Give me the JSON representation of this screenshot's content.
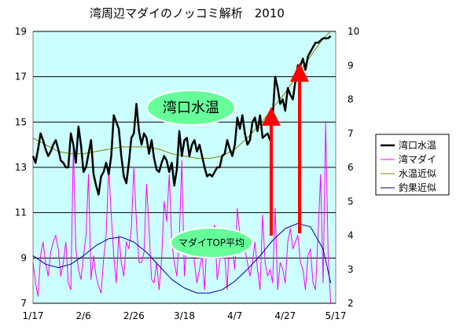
{
  "chart_data": {
    "type": "line",
    "title": "湾周辺マダイのノッコミ解析　2010",
    "x_ticks": [
      "1/17",
      "2/6",
      "2/26",
      "3/18",
      "4/7",
      "4/27",
      "5/17"
    ],
    "y_left": {
      "min": 7,
      "max": 19,
      "ticks": [
        "7",
        "9",
        "11",
        "13",
        "15",
        "17",
        "19"
      ]
    },
    "y_right": {
      "min": 2,
      "max": 10,
      "ticks": [
        "2",
        "3",
        "4",
        "5",
        "6",
        "7",
        "8",
        "9",
        "10"
      ]
    },
    "legend_position": "right",
    "grid": "horizontal",
    "annotations": {
      "water_temp": "湾口水温",
      "madai_top": "マダイTOP平均"
    },
    "colors": {
      "plot_bg": "#ccffff",
      "water_temp": "#000000",
      "madai": "#ff00ff",
      "temp_fit": "#808000",
      "catch_fit": "#0000a0",
      "arrow": "#ff0000",
      "bubble": "#66ff99"
    },
    "series": [
      {
        "name": "湾口水温",
        "axis": "left",
        "x": [
          0,
          1,
          2,
          3,
          4,
          5,
          6,
          7,
          8,
          9,
          10,
          11,
          12,
          13,
          14,
          15,
          16,
          17,
          18,
          19,
          20,
          21,
          22,
          23,
          24,
          25,
          26,
          27,
          28,
          29,
          30,
          31,
          32,
          33,
          34,
          35,
          36,
          37,
          38,
          39,
          40,
          41,
          42,
          43,
          44,
          45,
          46,
          47,
          48,
          49,
          50,
          51,
          52,
          53,
          54,
          55,
          56,
          57,
          58,
          59,
          60,
          61,
          62,
          63,
          64,
          65,
          66,
          67,
          68,
          69,
          70,
          71,
          72,
          73,
          74,
          75,
          76,
          77,
          78,
          79,
          80,
          81,
          82,
          83,
          84,
          85,
          86,
          87,
          88,
          89,
          90,
          91,
          92,
          93,
          94,
          95,
          96,
          97,
          98,
          99,
          100,
          101,
          102,
          103,
          104,
          105,
          106,
          107,
          108,
          109,
          110,
          111,
          112,
          113,
          114,
          115,
          116,
          117,
          118
        ],
        "values": [
          13.5,
          13.2,
          13.8,
          14.5,
          14.2,
          13.8,
          13.5,
          13.7,
          14.0,
          14.2,
          13.8,
          13.3,
          13.2,
          13.0,
          13.0,
          14.5,
          14.0,
          13.2,
          14.8,
          14.0,
          12.8,
          13.0,
          13.6,
          14.2,
          12.7,
          12.2,
          11.8,
          12.6,
          12.8,
          13.2,
          12.7,
          13.5,
          15.3,
          15.0,
          14.7,
          13.5,
          12.6,
          12.3,
          13.2,
          14.3,
          14.5,
          15.8,
          14.6,
          14.0,
          14.5,
          14.3,
          13.6,
          14.2,
          13.4,
          12.9,
          12.8,
          13.2,
          13.5,
          13.3,
          12.8,
          13.2,
          12.2,
          12.9,
          14.6,
          13.5,
          14.2,
          14.3,
          13.5,
          14.0,
          14.2,
          13.7,
          14.0,
          13.5,
          13.0,
          12.6,
          12.7,
          12.6,
          12.8,
          13.0,
          13.0,
          13.5,
          13.6,
          14.2,
          13.8,
          13.5,
          14.0,
          15.2,
          14.7,
          15.3,
          14.5,
          14.0,
          14.2,
          15.0,
          15.2,
          14.6,
          15.3,
          14.3,
          14.4,
          14.5,
          14.2,
          15.2,
          17.0,
          16.5,
          15.8,
          16.0,
          15.5,
          16.5,
          16.2,
          16.0,
          16.8,
          17.5,
          17.5,
          17.8,
          17.3,
          17.9,
          18.1,
          18.3,
          18.5,
          18.5,
          18.6,
          18.7,
          18.7,
          18.7,
          18.8
        ]
      },
      {
        "name": "湾マダイ",
        "axis": "right",
        "x": [
          0,
          1,
          2,
          3,
          4,
          5,
          6,
          7,
          8,
          9,
          10,
          11,
          12,
          13,
          14,
          15,
          16,
          17,
          18,
          19,
          20,
          21,
          22,
          23,
          24,
          25,
          26,
          27,
          28,
          29,
          30,
          31,
          32,
          33,
          34,
          35,
          36,
          37,
          38,
          39,
          40,
          41,
          42,
          43,
          44,
          45,
          46,
          47,
          48,
          49,
          50,
          51,
          52,
          53,
          54,
          55,
          56,
          57,
          58,
          59,
          60,
          61,
          62,
          63,
          64,
          65,
          66,
          67,
          68,
          69,
          70,
          71,
          72,
          73,
          74,
          75,
          76,
          77,
          78,
          79,
          80,
          81,
          82,
          83,
          84,
          85,
          86,
          87,
          88,
          89,
          90,
          91,
          92,
          93,
          94,
          95,
          96,
          97,
          98,
          99,
          100,
          101,
          102,
          103,
          104,
          105,
          106,
          107,
          108,
          109,
          110,
          111,
          112,
          113,
          114,
          115,
          116,
          117,
          118
        ],
        "values": [
          3.2,
          2.6,
          2.2,
          3.4,
          3.8,
          3.2,
          2.8,
          3.5,
          3.8,
          4.0,
          3.6,
          2.8,
          3.2,
          3.8,
          2.6,
          2.4,
          6.6,
          3.6,
          3.0,
          2.7,
          3.4,
          4.0,
          5.8,
          2.7,
          3.4,
          2.8,
          2.5,
          2.3,
          3.3,
          4.0,
          6.0,
          4.6,
          3.4,
          2.6,
          4.0,
          3.2,
          2.8,
          3.8,
          3.6,
          4.2,
          6.0,
          4.4,
          3.2,
          3.2,
          3.5,
          5.5,
          4.2,
          2.7,
          2.6,
          3.2,
          2.4,
          3.3,
          5.0,
          4.4,
          5.8,
          3.8,
          3.2,
          2.8,
          4.0,
          6.2,
          2.8,
          3.8,
          3.4,
          4.2,
          3.2,
          2.6,
          3.0,
          3.4,
          2.4,
          4.0,
          3.8,
          4.1,
          4.3,
          2.7,
          3.2,
          3.8,
          3.4,
          2.4,
          4.2,
          3.6,
          3.0,
          4.8,
          4.0,
          3.5,
          3.6,
          3.2,
          2.8,
          3.2,
          3.8,
          3.0,
          2.4,
          4.6,
          3.2,
          2.8,
          3.0,
          2.6,
          4.8,
          2.4,
          3.2,
          3.0,
          2.6,
          3.8,
          4.2,
          3.6,
          3.8,
          4.0,
          3.2,
          3.0,
          2.4,
          3.4,
          3.6,
          2.6,
          2.4,
          4.0,
          5.8,
          2.6,
          7.3,
          3.4,
          2.0
        ]
      },
      {
        "name": "水温近似",
        "axis": "left",
        "x": [
          0,
          5,
          10,
          15,
          20,
          25,
          30,
          35,
          40,
          45,
          50,
          55,
          60,
          65,
          70,
          75,
          80,
          85,
          90,
          95,
          100,
          105,
          110,
          115,
          118
        ],
        "values": [
          14.3,
          14.0,
          13.7,
          13.6,
          13.6,
          13.7,
          13.8,
          13.9,
          13.9,
          13.9,
          13.8,
          13.6,
          13.5,
          13.4,
          13.4,
          13.5,
          13.8,
          14.3,
          14.9,
          15.6,
          16.3,
          17.1,
          17.9,
          18.7,
          19.0
        ]
      },
      {
        "name": "釣果近似",
        "axis": "right",
        "x": [
          0,
          5,
          10,
          15,
          20,
          25,
          30,
          35,
          40,
          45,
          50,
          55,
          60,
          65,
          70,
          75,
          80,
          85,
          90,
          95,
          100,
          105,
          110,
          115,
          118
        ],
        "values": [
          3.4,
          3.15,
          3.05,
          3.15,
          3.4,
          3.7,
          3.9,
          3.95,
          3.8,
          3.5,
          3.1,
          2.7,
          2.45,
          2.3,
          2.3,
          2.4,
          2.65,
          3.0,
          3.4,
          3.85,
          4.2,
          4.35,
          4.25,
          3.6,
          2.6
        ]
      }
    ]
  }
}
